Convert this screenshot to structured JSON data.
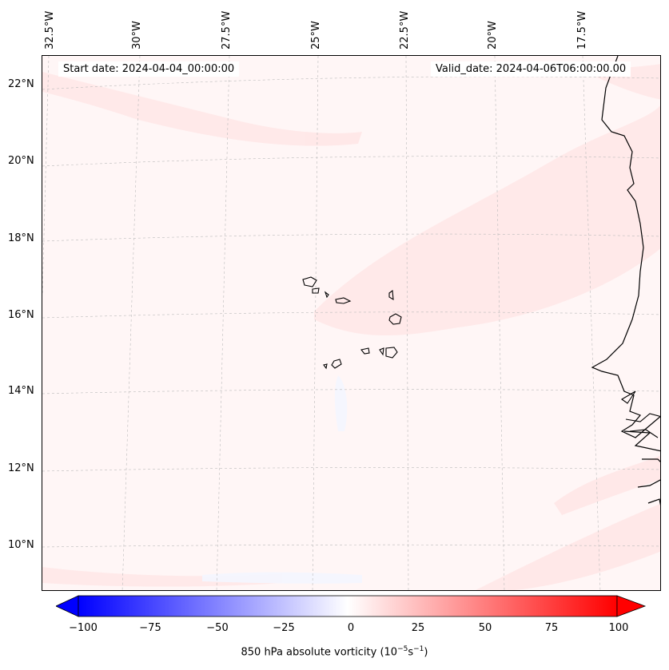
{
  "map": {
    "field": "850 hPa absolute vorticity",
    "units": "(10⁻⁵s⁻¹)",
    "start_date_text": "Start date: 2024-04-04_00:00:00",
    "valid_date_text": "Valid_date: 2024-04-06T06:00:00.00",
    "extent": {
      "lon_min": -33.0,
      "lon_max": -16.1,
      "lat_min": 8.8,
      "lat_max": 22.8
    },
    "lon_labels": [
      "32.5°W",
      "30°W",
      "27.5°W",
      "25°W",
      "22.5°W",
      "20°W",
      "17.5°W"
    ],
    "lat_labels": [
      "22°N",
      "20°N",
      "18°N",
      "16°N",
      "14°N",
      "12°N",
      "10°N"
    ],
    "gridlines": true,
    "features": [
      "West African coastline",
      "Cape Verde islands",
      "Senegal",
      "Gambia",
      "Guinea-Bissau"
    ]
  },
  "colorbar": {
    "orientation": "horizontal",
    "range": [
      -100,
      100
    ],
    "extend": "both",
    "ticks": [
      "−100",
      "−75",
      "−50",
      "−25",
      "0",
      "25",
      "50",
      "75",
      "100"
    ],
    "label_text": "850 hPa absolute vorticity (10",
    "label_exp1": "−5",
    "label_mid": "s",
    "label_exp2": "−1",
    "label_end": ")",
    "colors": {
      "min": "#0000ff",
      "mid": "#ffffff",
      "max": "#ff0000"
    }
  }
}
